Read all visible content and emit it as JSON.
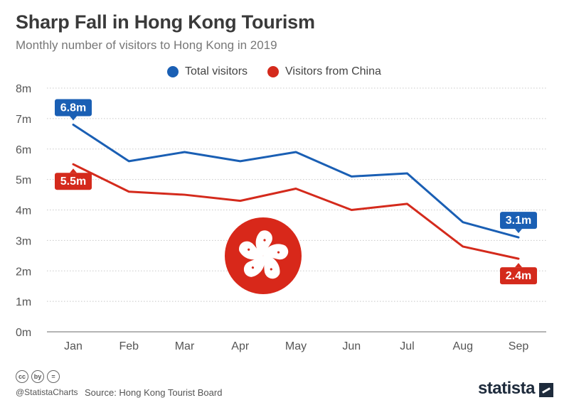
{
  "header": {
    "title": "Sharp Fall in Hong Kong Tourism",
    "subtitle": "Monthly number of visitors to Hong Kong in 2019"
  },
  "colors": {
    "total": "#1a5fb4",
    "china": "#d42a1c",
    "grid": "#c8c8c8",
    "flag_red": "#d8281a"
  },
  "chart_data": {
    "type": "line",
    "categories": [
      "Jan",
      "Feb",
      "Mar",
      "Apr",
      "May",
      "Jun",
      "Jul",
      "Aug",
      "Sep"
    ],
    "series": [
      {
        "name": "Total visitors",
        "key": "total",
        "values": [
          6.8,
          5.6,
          5.9,
          5.6,
          5.9,
          5.1,
          5.2,
          3.6,
          3.1
        ]
      },
      {
        "name": "Visitors from China",
        "key": "china",
        "values": [
          5.5,
          4.6,
          4.5,
          4.3,
          4.7,
          4.0,
          4.2,
          2.8,
          2.4
        ]
      }
    ],
    "ylim": [
      0,
      8
    ],
    "yticks": [
      0,
      1,
      2,
      3,
      4,
      5,
      6,
      7,
      8
    ],
    "ytick_labels": [
      "0m",
      "1m",
      "2m",
      "3m",
      "4m",
      "5m",
      "6m",
      "7m",
      "8m"
    ],
    "annotations": [
      {
        "series": "total",
        "index": 0,
        "text": "6.8m",
        "placement": "above"
      },
      {
        "series": "china",
        "index": 0,
        "text": "5.5m",
        "placement": "below"
      },
      {
        "series": "total",
        "index": 8,
        "text": "3.1m",
        "placement": "above"
      },
      {
        "series": "china",
        "index": 8,
        "text": "2.4m",
        "placement": "below"
      }
    ],
    "grid": true,
    "legend": "top-center",
    "emblem": "hong-kong-bauhinia-flag-icon"
  },
  "footer": {
    "license_icons": [
      "cc",
      "by",
      "="
    ],
    "handle": "@StatistaCharts",
    "source": "Source: Hong Kong Tourist Board",
    "brand": "statista"
  }
}
